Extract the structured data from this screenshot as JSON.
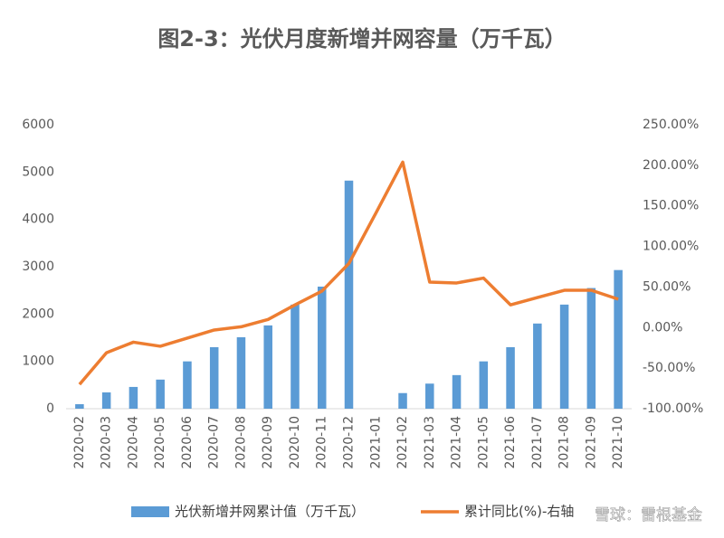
{
  "chart_data": {
    "type": "bar-line",
    "title": "图2-3：光伏月度新增并网容量（万千瓦）",
    "categories": [
      "2020-02",
      "2020-03",
      "2020-04",
      "2020-05",
      "2020-06",
      "2020-07",
      "2020-08",
      "2020-09",
      "2020-10",
      "2020-11",
      "2020-12",
      "2021-01",
      "2021-02",
      "2021-03",
      "2021-04",
      "2021-05",
      "2021-06",
      "2021-07",
      "2021-08",
      "2021-09",
      "2021-10"
    ],
    "series": [
      {
        "name": "光伏新增并网累计值（万千瓦）",
        "type": "bar",
        "color": "#5b9bd5",
        "values": [
          95,
          345,
          460,
          615,
          1000,
          1300,
          1510,
          1760,
          2200,
          2580,
          4820,
          null,
          330,
          530,
          710,
          1000,
          1300,
          1800,
          2200,
          2550,
          2930
        ]
      },
      {
        "name": "累计同比(%)-右轴",
        "type": "line",
        "axis": "y2",
        "color": "#ed7d31",
        "values": [
          -70,
          -31,
          -18,
          -23,
          -13,
          -3,
          1,
          10,
          28,
          45,
          79,
          141,
          204,
          56,
          55,
          61,
          28,
          37,
          46,
          46,
          35
        ]
      }
    ],
    "ylim": [
      0,
      6000
    ],
    "yticks": [
      0,
      1000,
      2000,
      3000,
      4000,
      5000,
      6000
    ],
    "y2lim": [
      -100,
      250
    ],
    "y2ticks": [
      {
        "value": -100,
        "label": "-100.00%"
      },
      {
        "value": -50,
        "label": "-50.00%"
      },
      {
        "value": 0,
        "label": "0.00%"
      },
      {
        "value": 50,
        "label": "50.00%"
      },
      {
        "value": 100,
        "label": "100.00%"
      },
      {
        "value": 150,
        "label": "150.00%"
      },
      {
        "value": 200,
        "label": "200.00%"
      },
      {
        "value": 250,
        "label": "250.00%"
      }
    ],
    "legend": "bottom",
    "watermark": "雪球：雷根基金"
  }
}
